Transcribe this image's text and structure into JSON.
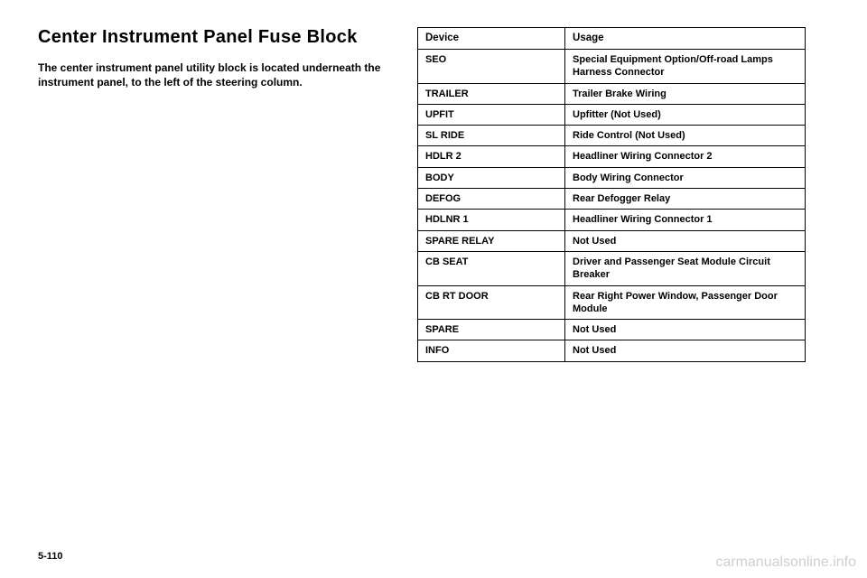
{
  "section": {
    "title": "Center Instrument Panel Fuse Block",
    "intro": "The center instrument panel utility block is located underneath the instrument panel, to the left of the steering column."
  },
  "table": {
    "headers": [
      "Device",
      "Usage"
    ],
    "rows": [
      [
        "SEO",
        "Special Equipment Option/Off-road Lamps Harness Connector"
      ],
      [
        "TRAILER",
        "Trailer Brake Wiring"
      ],
      [
        "UPFIT",
        "Upfitter (Not Used)"
      ],
      [
        "SL RIDE",
        "Ride Control (Not Used)"
      ],
      [
        "HDLR 2",
        "Headliner Wiring Connector 2"
      ],
      [
        "BODY",
        "Body Wiring Connector"
      ],
      [
        "DEFOG",
        "Rear Defogger Relay"
      ],
      [
        "HDLNR 1",
        "Headliner Wiring Connector 1"
      ],
      [
        "SPARE RELAY",
        "Not Used"
      ],
      [
        "CB SEAT",
        "Driver and Passenger Seat Module Circuit Breaker"
      ],
      [
        "CB RT DOOR",
        "Rear Right Power Window, Passenger Door Module"
      ],
      [
        "SPARE",
        "Not Used"
      ],
      [
        "INFO",
        "Not Used"
      ]
    ]
  },
  "page_number": "5-110",
  "watermark": "carmanualsonline.info"
}
